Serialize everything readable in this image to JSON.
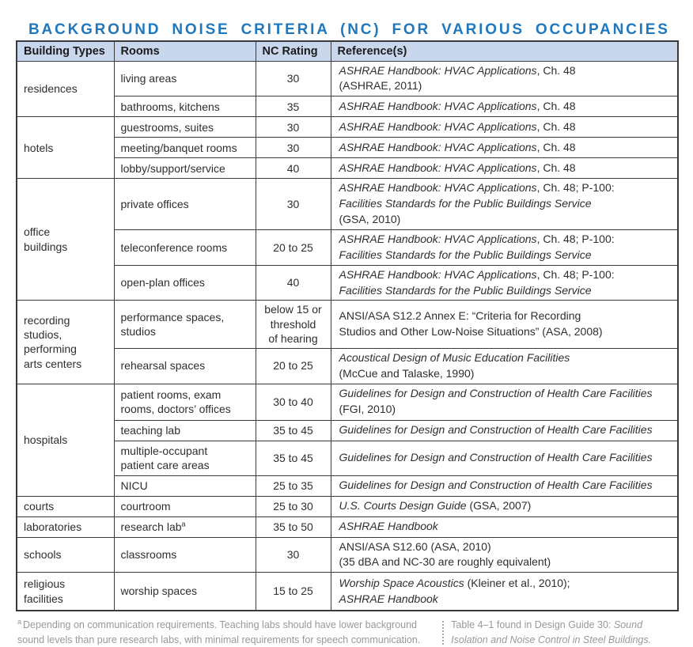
{
  "title": "BACKGROUND NOISE CRITERIA (NC) FOR VARIOUS OCCUPANCIES",
  "colors": {
    "title": "#1f78bd",
    "header_bg": "#c9d7ed",
    "border": "#3a3a3c",
    "text": "#2e2e30",
    "footnote": "#96989b"
  },
  "table": {
    "columns": [
      "Building Types",
      "Rooms",
      "NC Rating",
      "Reference(s)"
    ],
    "groups": [
      {
        "building_type": "residences",
        "rows": [
          {
            "room": "living areas",
            "nc": "30",
            "reference": [
              [
                {
                  "t": "ASHRAE Handbook: HVAC Applications",
                  "i": true
                },
                {
                  "t": ", Ch. 48"
                }
              ],
              [
                {
                  "t": "(ASHRAE, 2011)"
                }
              ]
            ]
          },
          {
            "room": "bathrooms, kitchens",
            "nc": "35",
            "reference": [
              [
                {
                  "t": "ASHRAE Handbook: HVAC Applications",
                  "i": true
                },
                {
                  "t": ", Ch. 48"
                }
              ]
            ]
          }
        ]
      },
      {
        "building_type": "hotels",
        "rows": [
          {
            "room": "guestrooms, suites",
            "nc": "30",
            "reference": [
              [
                {
                  "t": "ASHRAE Handbook: HVAC Applications",
                  "i": true
                },
                {
                  "t": ", Ch. 48"
                }
              ]
            ]
          },
          {
            "room": "meeting/banquet rooms",
            "nc": "30",
            "reference": [
              [
                {
                  "t": "ASHRAE Handbook: HVAC Applications",
                  "i": true
                },
                {
                  "t": ", Ch. 48"
                }
              ]
            ]
          },
          {
            "room": "lobby/support/service",
            "nc": "40",
            "reference": [
              [
                {
                  "t": "ASHRAE Handbook: HVAC Applications",
                  "i": true
                },
                {
                  "t": ", Ch. 48"
                }
              ]
            ]
          }
        ]
      },
      {
        "building_type": "office\nbuildings",
        "rows": [
          {
            "room": "private offices",
            "nc": "30",
            "reference": [
              [
                {
                  "t": "ASHRAE Handbook: HVAC Applications",
                  "i": true
                },
                {
                  "t": ", Ch. 48; P-100:"
                }
              ],
              [
                {
                  "t": "Facilities Standards for the Public Buildings Service",
                  "i": true
                }
              ],
              [
                {
                  "t": "(GSA, 2010)"
                }
              ]
            ]
          },
          {
            "room": "teleconference rooms",
            "nc": "20 to 25",
            "reference": [
              [
                {
                  "t": "ASHRAE Handbook: HVAC Applications",
                  "i": true
                },
                {
                  "t": ", Ch. 48; P-100:"
                }
              ],
              [
                {
                  "t": "Facilities Standards for the Public Buildings Service",
                  "i": true
                }
              ]
            ]
          },
          {
            "room": "open-plan offices",
            "nc": "40",
            "reference": [
              [
                {
                  "t": "ASHRAE Handbook: HVAC Applications",
                  "i": true
                },
                {
                  "t": ", Ch. 48; P-100:"
                }
              ],
              [
                {
                  "t": "Facilities Standards for the Public Buildings Service",
                  "i": true
                }
              ]
            ]
          }
        ]
      },
      {
        "building_type": "recording\nstudios,\nperforming\narts centers",
        "rows": [
          {
            "room": "performance spaces,\nstudios",
            "nc": "below 15 or\nthreshold\nof hearing",
            "reference": [
              [
                {
                  "t": "ANSI/ASA S12.2 Annex E: “Criteria for Recording"
                }
              ],
              [
                {
                  "t": "Studios and Other Low-Noise Situations” (ASA, 2008)"
                }
              ]
            ]
          },
          {
            "room": "rehearsal spaces",
            "nc": "20 to 25",
            "reference": [
              [
                {
                  "t": "Acoustical Design of Music Education Facilities",
                  "i": true
                }
              ],
              [
                {
                  "t": "(McCue and Talaske, 1990)"
                }
              ]
            ]
          }
        ]
      },
      {
        "building_type": "hospitals",
        "rows": [
          {
            "room": "patient rooms, exam\nrooms, doctors’ offices",
            "nc": "30 to 40",
            "reference": [
              [
                {
                  "t": "Guidelines for Design and Construction of Health Care Facilities",
                  "i": true
                }
              ],
              [
                {
                  "t": "(FGI, 2010)"
                }
              ]
            ]
          },
          {
            "room": "teaching lab",
            "nc": "35 to 45",
            "reference": [
              [
                {
                  "t": "Guidelines for Design and Construction of Health Care Facilities",
                  "i": true
                }
              ]
            ]
          },
          {
            "room": "multiple-occupant\npatient care areas",
            "nc": "35 to 45",
            "reference": [
              [
                {
                  "t": "Guidelines for Design and Construction of Health Care Facilities",
                  "i": true
                }
              ]
            ]
          },
          {
            "room": "NICU",
            "nc": "25 to 35",
            "reference": [
              [
                {
                  "t": "Guidelines for Design and Construction of Health Care Facilities",
                  "i": true
                }
              ]
            ]
          }
        ]
      },
      {
        "building_type": "courts",
        "rows": [
          {
            "room": "courtroom",
            "nc": "25 to 30",
            "reference": [
              [
                {
                  "t": "U.S. Courts Design Guide",
                  "i": true
                },
                {
                  "t": " (GSA, 2007)"
                }
              ]
            ]
          }
        ]
      },
      {
        "building_type": "laboratories",
        "rows": [
          {
            "room": "research lab",
            "room_sup": "a",
            "nc": "35 to 50",
            "reference": [
              [
                {
                  "t": "ASHRAE Handbook",
                  "i": true
                }
              ]
            ]
          }
        ]
      },
      {
        "building_type": "schools",
        "rows": [
          {
            "room": "classrooms",
            "nc": "30",
            "reference": [
              [
                {
                  "t": "ANSI/ASA S12.60 (ASA, 2010)"
                }
              ],
              [
                {
                  "t": "(35 dBA and NC-30 are roughly equivalent)"
                }
              ]
            ]
          }
        ]
      },
      {
        "building_type": "religious\nfacilities",
        "rows": [
          {
            "room": "worship spaces",
            "nc": "15 to 25",
            "reference": [
              [
                {
                  "t": "Worship Space Acoustics",
                  "i": true
                },
                {
                  "t": " (Kleiner et al., 2010);"
                }
              ],
              [
                {
                  "t": "ASHRAE Handbook",
                  "i": true
                }
              ]
            ]
          }
        ]
      }
    ]
  },
  "footnotes": {
    "left_marker": "a",
    "left_text": "Depending on communication requirements. Teaching labs should have lower background sound levels than pure research labs, with minimal requirements for speech communication.",
    "right_plain": "Table 4–1 found in Design Guide 30: ",
    "right_italic": "Sound Isolation and Noise Control in Steel Buildings."
  }
}
